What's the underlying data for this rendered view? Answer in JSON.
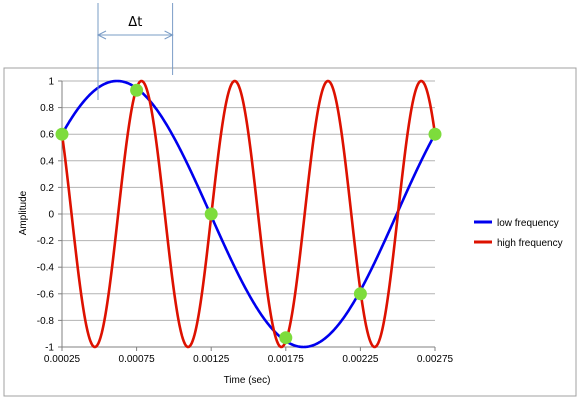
{
  "chart_data": {
    "type": "line",
    "xlabel": "Time (sec)",
    "ylabel": "Amplitude",
    "xlim": [
      0.00025,
      0.00275
    ],
    "ylim": [
      -1,
      1
    ],
    "x_ticks": [
      "0.00025",
      "0.00075",
      "0.00125",
      "0.00175",
      "0.00225",
      "0.00275"
    ],
    "y_ticks": [
      "1",
      "0.8",
      "0.6",
      "0.4",
      "0.2",
      "0",
      "-0.2",
      "-0.4",
      "-0.6",
      "-0.8",
      "-1"
    ],
    "grid": "horizontal",
    "legend_position": "right",
    "series": [
      {
        "name": "low frequency",
        "color": "#0000ee",
        "function": "sine",
        "amplitude": 1,
        "frequency_hz": 400,
        "phase_rad": 0.6435,
        "x_start": 0.00025,
        "x_end": 0.00275
      },
      {
        "name": "high frequency",
        "color": "#dd1100",
        "function": "sine",
        "amplitude": 1,
        "frequency_hz": 1600,
        "phase_rad": 2.4981,
        "x_start": 0.00025,
        "x_end": 0.00275
      }
    ],
    "sample_points": {
      "color": "#7ddc3c",
      "points": [
        {
          "x": 0.00025,
          "y": 0.6
        },
        {
          "x": 0.00075,
          "y": 0.93
        },
        {
          "x": 0.00125,
          "y": 0.0
        },
        {
          "x": 0.00175,
          "y": -0.93
        },
        {
          "x": 0.00225,
          "y": -0.6
        },
        {
          "x": 0.00275,
          "y": 0.6
        }
      ]
    },
    "annotation": {
      "label": "Δt",
      "x_start": 0.00025,
      "x_end": 0.00075
    }
  }
}
